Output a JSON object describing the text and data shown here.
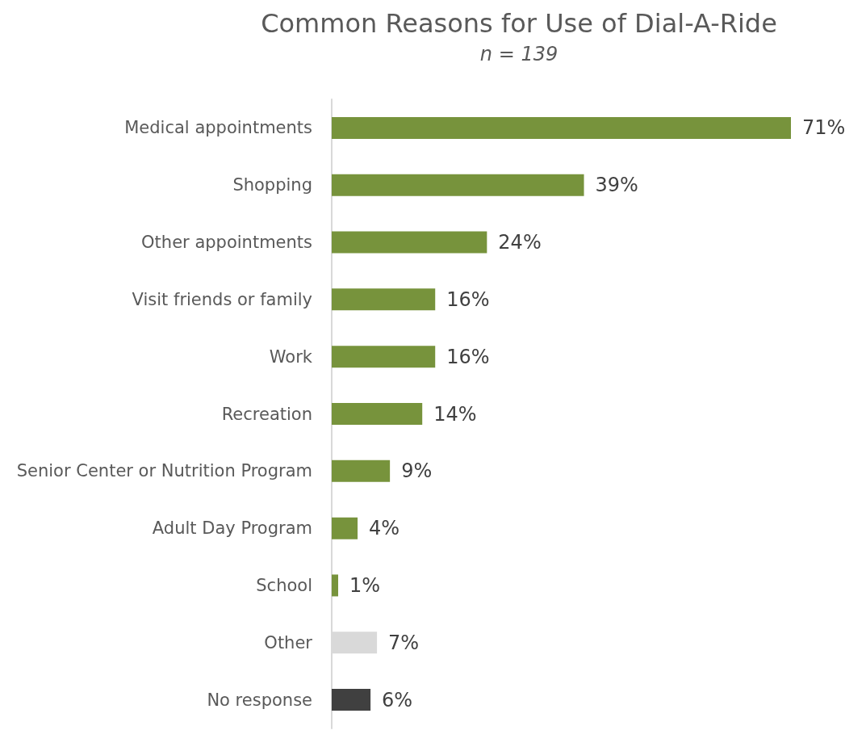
{
  "chart_data": {
    "type": "bar",
    "orientation": "horizontal",
    "title": "Common Reasons for Use of Dial-A-Ride",
    "subtitle": "n = 139",
    "categories": [
      "Medical appointments",
      "Shopping",
      "Other appointments",
      "Visit friends or family",
      "Work",
      "Recreation",
      "Senior Center or Nutrition Program",
      "Adult Day Program",
      "School",
      "Other",
      "No response"
    ],
    "values": [
      71,
      39,
      24,
      16,
      16,
      14,
      9,
      4,
      1,
      7,
      6
    ],
    "value_labels": [
      "71%",
      "39%",
      "24%",
      "16%",
      "16%",
      "14%",
      "9%",
      "4%",
      "1%",
      "7%",
      "6%"
    ],
    "colors": [
      "#77933c",
      "#77933c",
      "#77933c",
      "#77933c",
      "#77933c",
      "#77933c",
      "#77933c",
      "#77933c",
      "#77933c",
      "#d9d9d9",
      "#404040"
    ],
    "grid": false
  }
}
